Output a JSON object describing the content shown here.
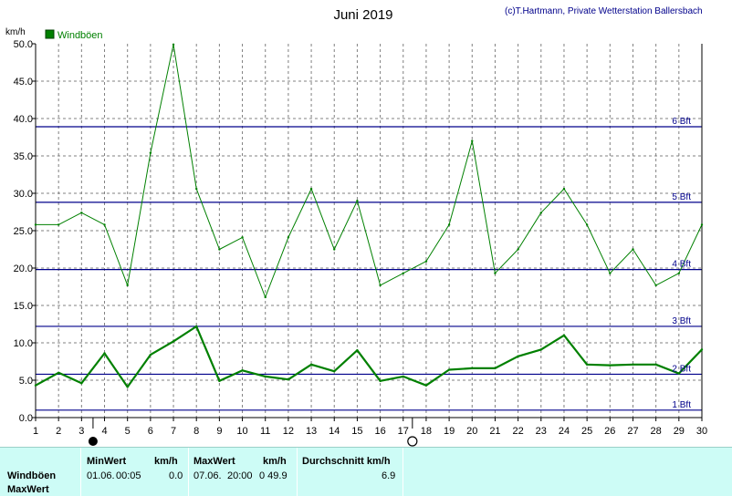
{
  "header": {
    "title": "Juni 2019",
    "copyright": "(c)T.Hartmann, Private Wetterstation Ballersbach",
    "unit_label": "km/h"
  },
  "colors": {
    "series": "#008000",
    "beaufort_line": "#00008b",
    "grid": "#808080",
    "panel_bg": "#cdfcf6"
  },
  "chart_data": {
    "type": "line",
    "title": "Juni 2019",
    "ylabel": "km/h",
    "xlim": [
      1,
      30
    ],
    "ylim": [
      0,
      50
    ],
    "x_ticks": [
      1,
      2,
      3,
      4,
      5,
      6,
      7,
      8,
      9,
      10,
      11,
      12,
      13,
      14,
      15,
      16,
      17,
      18,
      19,
      20,
      21,
      22,
      23,
      24,
      25,
      26,
      27,
      28,
      29,
      30
    ],
    "y_ticks": [
      "0.0",
      "5.0",
      "10.0",
      "15.0",
      "20.0",
      "25.0",
      "30.0",
      "35.0",
      "40.0",
      "45.0",
      "50.0"
    ],
    "grid": true,
    "legend": {
      "position": "top-left",
      "entries": [
        "Windböen"
      ]
    },
    "series": [
      {
        "name": "Windböen",
        "role": "max",
        "x": [
          1,
          2,
          3,
          4,
          5,
          6,
          7,
          8,
          9,
          10,
          11,
          12,
          13,
          14,
          15,
          16,
          17,
          18,
          19,
          20,
          21,
          22,
          23,
          24,
          25,
          26,
          27,
          28,
          29,
          30
        ],
        "values": [
          25.8,
          25.8,
          27.4,
          25.8,
          17.7,
          35.4,
          49.9,
          30.6,
          22.5,
          24.1,
          16.1,
          24.1,
          30.6,
          22.5,
          29.0,
          17.7,
          19.3,
          20.9,
          25.8,
          37.0,
          19.3,
          22.5,
          27.4,
          30.6,
          25.8,
          19.3,
          22.5,
          17.7,
          19.3,
          25.8
        ]
      },
      {
        "role": "average",
        "x": [
          1,
          2,
          3,
          4,
          5,
          6,
          7,
          8,
          9,
          10,
          11,
          12,
          13,
          14,
          15,
          16,
          17,
          18,
          19,
          20,
          21,
          22,
          23,
          24,
          25,
          26,
          27,
          28,
          29,
          30
        ],
        "values": [
          4.3,
          6.0,
          4.6,
          8.6,
          4.1,
          8.4,
          10.2,
          12.2,
          4.9,
          6.3,
          5.5,
          5.1,
          7.1,
          6.2,
          9.0,
          4.9,
          5.5,
          4.3,
          6.4,
          6.6,
          6.6,
          8.2,
          9.1,
          11.0,
          7.1,
          7.0,
          7.1,
          7.1,
          5.9,
          9.1
        ]
      }
    ],
    "reference_lines": [
      {
        "label": "1 Bft",
        "value": 1.0
      },
      {
        "label": "2 Bft",
        "value": 5.8
      },
      {
        "label": "3 Bft",
        "value": 12.2
      },
      {
        "label": "4 Bft",
        "value": 19.8
      },
      {
        "label": "5 Bft",
        "value": 28.8
      },
      {
        "label": "6 Bft",
        "value": 38.9
      }
    ],
    "moon_phases": [
      {
        "phase": "new",
        "day": 3.5
      },
      {
        "phase": "full",
        "day": 17.4
      }
    ]
  },
  "stats": {
    "row_labels": [
      "Windböen",
      "MaxWert"
    ],
    "min_header": "MinWert",
    "min_unit": "km/h",
    "min_date": "01.06.",
    "min_time": "00:05",
    "min_value": "0.0",
    "max_header": "MaxWert",
    "max_unit": "km/h",
    "max_date": "07.06.",
    "max_time": "20:00",
    "max_value": "0 49.9",
    "avg_header": "Durchschnitt km/h",
    "avg_value": "6.9"
  }
}
